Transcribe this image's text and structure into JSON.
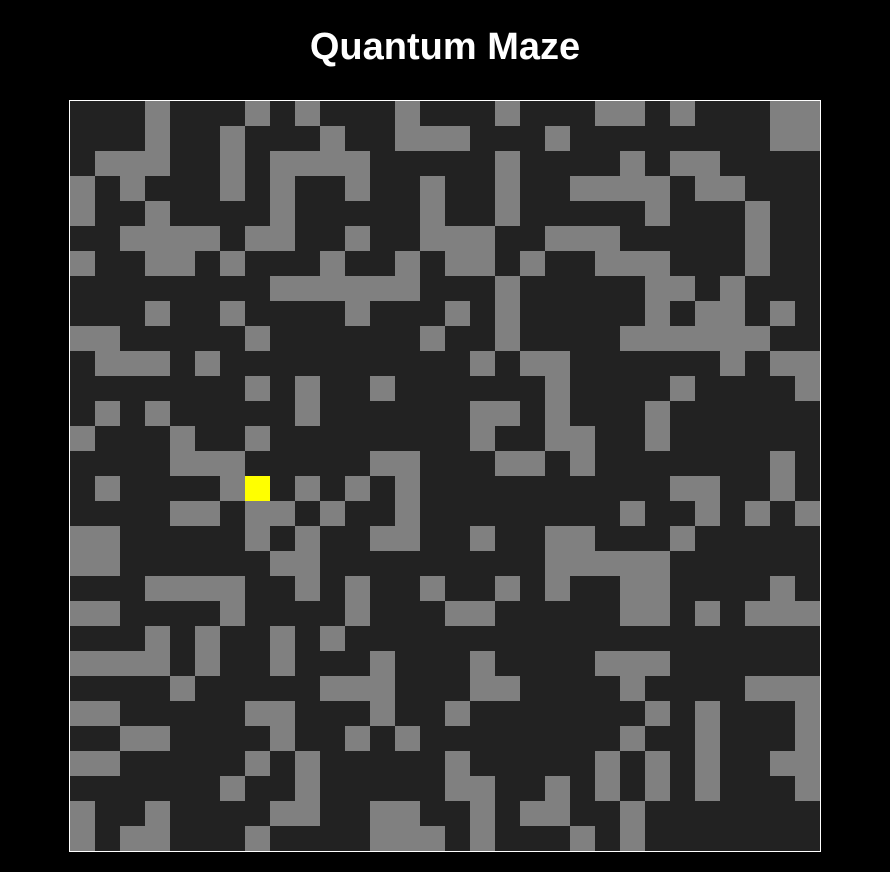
{
  "header": {
    "title": "Quantum Maze"
  },
  "maze": {
    "cols": 30,
    "rows": 30,
    "walls": [
      [
        3,
        7,
        9,
        13,
        17,
        21,
        22,
        24,
        28,
        29
      ],
      [
        3,
        6,
        10,
        13,
        14,
        15,
        19,
        28,
        29
      ],
      [
        1,
        2,
        3,
        6,
        8,
        9,
        10,
        11,
        17,
        22,
        24,
        25
      ],
      [
        0,
        2,
        6,
        8,
        11,
        14,
        17,
        20,
        21,
        22,
        23,
        25,
        26
      ],
      [
        0,
        3,
        8,
        14,
        17,
        23,
        27
      ],
      [
        2,
        3,
        4,
        5,
        7,
        8,
        11,
        14,
        15,
        16,
        19,
        20,
        21,
        27
      ],
      [
        0,
        3,
        4,
        6,
        10,
        13,
        15,
        16,
        18,
        21,
        22,
        23,
        27
      ],
      [
        8,
        9,
        10,
        11,
        12,
        13,
        17,
        23,
        24,
        26
      ],
      [
        3,
        6,
        11,
        15,
        17,
        23,
        25,
        26,
        28
      ],
      [
        0,
        1,
        7,
        14,
        17,
        22,
        23,
        24,
        25,
        26,
        27
      ],
      [
        1,
        2,
        3,
        5,
        16,
        18,
        19,
        26,
        28,
        29
      ],
      [
        7,
        9,
        12,
        19,
        24,
        29
      ],
      [
        1,
        3,
        9,
        16,
        17,
        19,
        23
      ],
      [
        0,
        4,
        7,
        16,
        19,
        20,
        23
      ],
      [
        4,
        5,
        6,
        12,
        13,
        17,
        18,
        20,
        28
      ],
      [
        1,
        6,
        9,
        11,
        13,
        24,
        25,
        28
      ],
      [
        4,
        5,
        7,
        8,
        10,
        13,
        22,
        25,
        27,
        29
      ],
      [
        0,
        1,
        7,
        9,
        12,
        13,
        16,
        19,
        20,
        24
      ],
      [
        0,
        1,
        8,
        9,
        19,
        20,
        21,
        22,
        23
      ],
      [
        3,
        4,
        5,
        6,
        9,
        11,
        14,
        17,
        19,
        22,
        23,
        28
      ],
      [
        0,
        1,
        6,
        11,
        15,
        16,
        22,
        23,
        25,
        27,
        28,
        29
      ],
      [
        3,
        5,
        8,
        10
      ],
      [
        0,
        1,
        2,
        3,
        5,
        8,
        12,
        16,
        21,
        22,
        23
      ],
      [
        4,
        10,
        11,
        12,
        16,
        17,
        22,
        27,
        28,
        29
      ],
      [
        0,
        1,
        7,
        8,
        12,
        15,
        23,
        25,
        29
      ],
      [
        2,
        3,
        8,
        11,
        13,
        22,
        25,
        29
      ],
      [
        0,
        1,
        7,
        9,
        15,
        21,
        23,
        25,
        28,
        29
      ],
      [
        6,
        9,
        15,
        16,
        19,
        21,
        23,
        25,
        29
      ],
      [
        0,
        3,
        8,
        9,
        12,
        13,
        16,
        18,
        19,
        22
      ],
      [
        0,
        2,
        3,
        7,
        12,
        13,
        14,
        16,
        20,
        22
      ]
    ],
    "player": {
      "col": 7,
      "row": 15
    }
  }
}
